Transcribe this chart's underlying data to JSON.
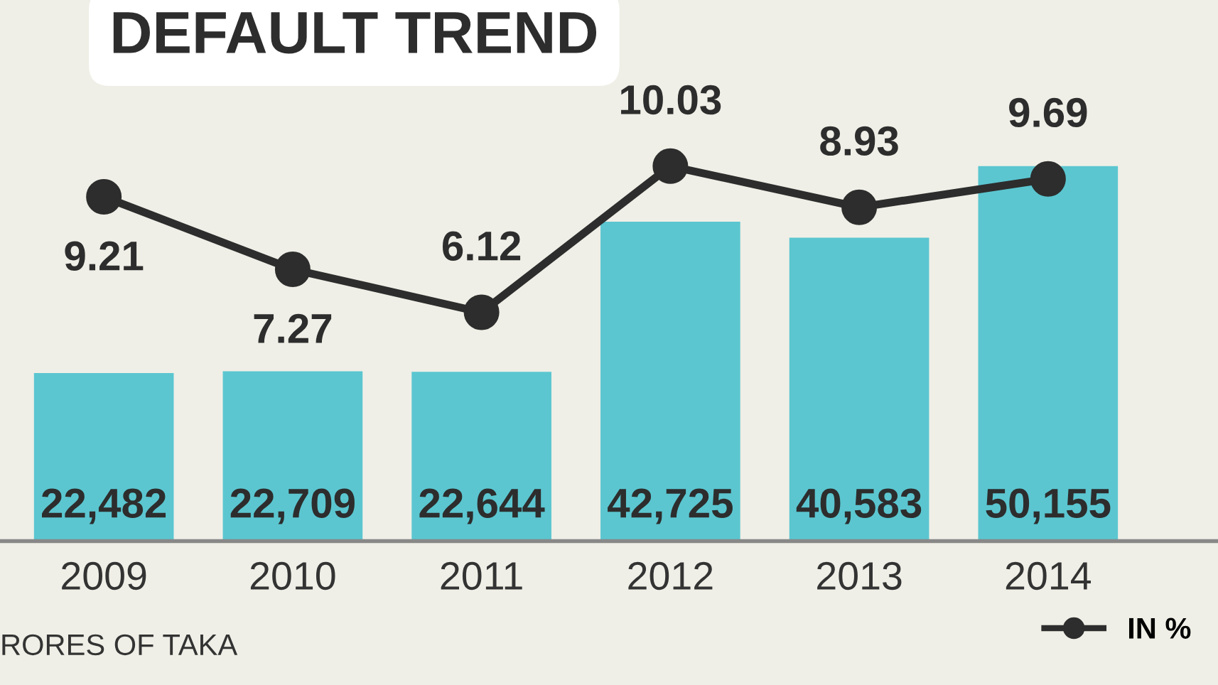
{
  "chart_data": {
    "type": "bar",
    "title": "DEFAULT TREND",
    "categories": [
      "2009",
      "2010",
      "2011",
      "2012",
      "2013",
      "2014"
    ],
    "series": [
      {
        "color": "#5bc6d0",
        "values": [
          22482,
          22709,
          22644,
          42725,
          40583,
          50155
        ],
        "value_labels": [
          "22,482",
          "22,709",
          "22,644",
          "42,725",
          "40,583",
          "50,155"
        ]
      },
      {
        "type": "line",
        "name": "IN %",
        "axis": "y2",
        "color": "#2d2d2d",
        "marker": "circle",
        "values": [
          9.21,
          7.27,
          6.12,
          10.03,
          8.93,
          9.69
        ],
        "data_labels": true
      }
    ],
    "annotations": [
      "RORES OF TAKA"
    ],
    "legend": "bottom right",
    "grid": false
  }
}
